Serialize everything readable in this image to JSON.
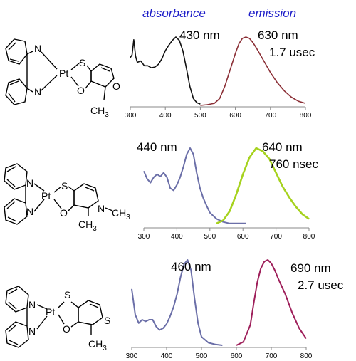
{
  "headers": {
    "absorbance": "absorbance",
    "emission": "emission"
  },
  "colors": {
    "header": "#1c1cc8",
    "abs_black": "#111111",
    "em_maroon": "#8b2f36",
    "abs_slate": "#6b6fa8",
    "em_lime": "#a6d21e",
    "em_magenta": "#9e1f5a"
  },
  "molecules": [
    {
      "atoms": {
        "n1": "N",
        "n2": "N",
        "pt": "Pt",
        "s": "S",
        "o1": "O",
        "o2": "O",
        "sub": "CH3"
      }
    },
    {
      "atoms": {
        "n1": "N",
        "n2": "N",
        "pt": "Pt",
        "s": "S",
        "o1": "O",
        "n3": "N",
        "sub": "CH3",
        "sub2": "CH3"
      }
    },
    {
      "atoms": {
        "n1": "N",
        "n2": "N",
        "pt": "Pt",
        "s": "S",
        "o1": "O",
        "s2": "S",
        "sub": "CH3"
      }
    }
  ],
  "chart_data": [
    {
      "type": "line",
      "xlim": [
        300,
        800
      ],
      "xticks": [
        300,
        400,
        500,
        600,
        700,
        800
      ],
      "labels": {
        "abs_peak": "430 nm",
        "em_peak": "630 nm",
        "lifetime": "1.7 usec"
      },
      "series": [
        {
          "kind": "absorbance",
          "color": "#111111",
          "x": [
            300,
            305,
            310,
            315,
            320,
            330,
            340,
            350,
            360,
            370,
            380,
            390,
            400,
            410,
            420,
            430,
            440,
            450,
            460,
            470,
            480,
            490,
            500
          ],
          "y": [
            0.7,
            0.74,
            0.96,
            0.72,
            0.63,
            0.65,
            0.58,
            0.58,
            0.55,
            0.56,
            0.6,
            0.68,
            0.8,
            0.88,
            0.95,
            1.0,
            0.95,
            0.8,
            0.55,
            0.28,
            0.1,
            0.04,
            0.02
          ]
        },
        {
          "kind": "emission",
          "color": "#8b2f36",
          "x": [
            500,
            520,
            540,
            555,
            570,
            585,
            600,
            610,
            620,
            630,
            640,
            650,
            660,
            680,
            700,
            720,
            740,
            760,
            780,
            800
          ],
          "y": [
            0.0,
            0.01,
            0.03,
            0.1,
            0.28,
            0.52,
            0.76,
            0.9,
            0.98,
            1.0,
            0.98,
            0.92,
            0.84,
            0.66,
            0.48,
            0.33,
            0.21,
            0.12,
            0.06,
            0.03
          ]
        }
      ]
    },
    {
      "type": "line",
      "xlim": [
        300,
        800
      ],
      "xticks": [
        300,
        400,
        500,
        600,
        700,
        800
      ],
      "labels": {
        "abs_peak": "440 nm",
        "em_peak": "640 nm",
        "lifetime": "760 nsec"
      },
      "series": [
        {
          "kind": "absorbance",
          "color": "#6b6fa8",
          "x": [
            300,
            310,
            320,
            330,
            340,
            350,
            360,
            370,
            380,
            390,
            400,
            410,
            420,
            430,
            440,
            450,
            460,
            470,
            480,
            490,
            500,
            520,
            540,
            560,
            580,
            600,
            610
          ],
          "y": [
            0.7,
            0.6,
            0.55,
            0.62,
            0.66,
            0.63,
            0.68,
            0.62,
            0.48,
            0.45,
            0.52,
            0.62,
            0.76,
            0.92,
            1.0,
            0.92,
            0.68,
            0.48,
            0.35,
            0.25,
            0.16,
            0.08,
            0.04,
            0.02,
            0.02,
            0.02,
            0.02
          ]
        },
        {
          "kind": "emission",
          "color": "#a6d21e",
          "x": [
            520,
            540,
            560,
            580,
            600,
            620,
            640,
            660,
            680,
            700,
            720,
            740,
            760,
            780,
            800
          ],
          "y": [
            0.02,
            0.06,
            0.18,
            0.4,
            0.66,
            0.88,
            1.0,
            0.96,
            0.86,
            0.68,
            0.5,
            0.36,
            0.24,
            0.14,
            0.08
          ]
        }
      ]
    },
    {
      "type": "line",
      "xlim": [
        300,
        800
      ],
      "xticks": [
        300,
        400,
        500,
        600,
        700,
        800
      ],
      "labels": {
        "abs_peak": "460 nm",
        "em_peak": "690 nm",
        "lifetime": "2.7 usec"
      },
      "series": [
        {
          "kind": "absorbance",
          "color": "#6b6fa8",
          "x": [
            300,
            310,
            320,
            330,
            340,
            350,
            360,
            370,
            380,
            390,
            400,
            410,
            420,
            430,
            440,
            450,
            460,
            470,
            480,
            490,
            500,
            520,
            540,
            560
          ],
          "y": [
            0.66,
            0.36,
            0.26,
            0.3,
            0.28,
            0.3,
            0.3,
            0.22,
            0.18,
            0.2,
            0.25,
            0.34,
            0.45,
            0.6,
            0.8,
            0.95,
            1.0,
            0.88,
            0.55,
            0.26,
            0.1,
            0.03,
            0.01,
            0.0
          ]
        },
        {
          "kind": "emission",
          "color": "#9e1f5a",
          "x": [
            600,
            620,
            640,
            650,
            660,
            670,
            680,
            690,
            700,
            710,
            720,
            740,
            760,
            780,
            800
          ],
          "y": [
            0.0,
            0.04,
            0.24,
            0.5,
            0.74,
            0.9,
            0.98,
            1.0,
            0.96,
            0.88,
            0.78,
            0.6,
            0.38,
            0.2,
            0.08
          ]
        }
      ]
    }
  ]
}
